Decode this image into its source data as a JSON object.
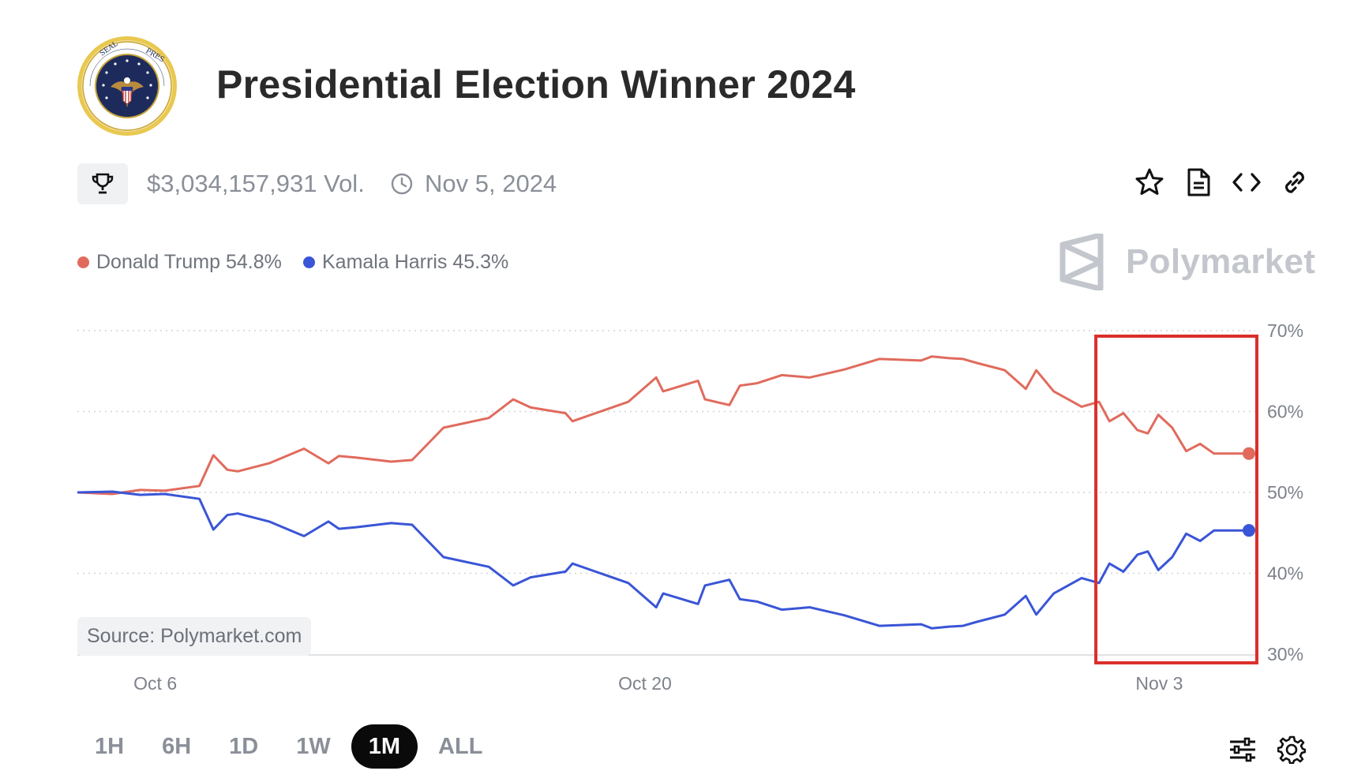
{
  "header": {
    "title": "Presidential Election Winner 2024",
    "volume": "$3,034,157,931 Vol.",
    "end_date": "Nov 5, 2024",
    "seal_icon": "presidential-seal-icon"
  },
  "toolbar": {
    "icons": [
      "star-icon",
      "document-icon",
      "code-icon",
      "link-icon"
    ]
  },
  "legend": [
    {
      "name": "Donald Trump 54.8%",
      "color": "#e06b5d"
    },
    {
      "name": "Kamala Harris 45.3%",
      "color": "#3a55d6"
    }
  ],
  "brand": {
    "name": "Polymarket"
  },
  "source": "Source: Polymarket.com",
  "range_buttons": [
    "1H",
    "6H",
    "1D",
    "1W",
    "1M",
    "ALL"
  ],
  "active_range": "1M",
  "bottom_icons": [
    "sliders-icon",
    "gear-icon"
  ],
  "chart_data": {
    "type": "line",
    "ylim": [
      30,
      70
    ],
    "y_ticks": [
      "70%",
      "60%",
      "50%",
      "40%",
      "30%"
    ],
    "x_ticks": [
      "Oct 6",
      "Oct 20",
      "Nov 3"
    ],
    "grid": true,
    "highlight_box": {
      "from_x": 29.3,
      "to_x": 33.6,
      "color": "#d9302c"
    },
    "series": [
      {
        "name": "Donald Trump",
        "color": "#e06b5d",
        "x": [
          0,
          1,
          1.8,
          2.5,
          3.5,
          3.9,
          4.3,
          4.6,
          5.5,
          6.5,
          7.2,
          7.5,
          8,
          9,
          9.6,
          10.5,
          11.8,
          12.5,
          13,
          14,
          14.2,
          15,
          15.8,
          16.6,
          16.8,
          17.8,
          18,
          18.7,
          19,
          19.5,
          20.2,
          21,
          22,
          23,
          24.2,
          24.5,
          25,
          25.4,
          25.8,
          26.6,
          27.2,
          27.5,
          28,
          28.8,
          29.3,
          29.6,
          30,
          30.4,
          30.7,
          31,
          31.4,
          31.8,
          32.2,
          32.6,
          33,
          33.3,
          33.6
        ],
        "y": [
          50,
          49.8,
          50.3,
          50.2,
          50.8,
          54.6,
          52.8,
          52.6,
          53.6,
          55.4,
          53.6,
          54.5,
          54.3,
          53.8,
          54.0,
          58,
          59.2,
          61.5,
          60.5,
          59.8,
          58.8,
          60,
          61.2,
          64.2,
          62.5,
          63.8,
          61.5,
          60.8,
          63.2,
          63.5,
          64.5,
          64.2,
          65.2,
          66.5,
          66.3,
          66.8,
          66.6,
          66.5,
          66,
          65.1,
          62.8,
          65.1,
          62.5,
          60.6,
          61.2,
          58.8,
          59.8,
          57.7,
          57.3,
          59.6,
          58,
          55.1,
          56,
          54.8,
          54.8,
          54.8,
          54.8
        ]
      },
      {
        "name": "Kamala Harris",
        "color": "#3a55d6",
        "x": [
          0,
          1,
          1.8,
          2.5,
          3.5,
          3.9,
          4.3,
          4.6,
          5.5,
          6.5,
          7.2,
          7.5,
          8,
          9,
          9.6,
          10.5,
          11.8,
          12.5,
          13,
          14,
          14.2,
          15,
          15.8,
          16.6,
          16.8,
          17.8,
          18,
          18.7,
          19,
          19.5,
          20.2,
          21,
          22,
          23,
          24.2,
          24.5,
          25,
          25.4,
          25.8,
          26.6,
          27.2,
          27.5,
          28,
          28.8,
          29.3,
          29.6,
          30,
          30.4,
          30.7,
          31,
          31.4,
          31.8,
          32.2,
          32.6,
          33,
          33.3,
          33.6
        ],
        "y": [
          50,
          50.1,
          49.7,
          49.8,
          49.2,
          45.4,
          47.2,
          47.4,
          46.4,
          44.6,
          46.4,
          45.5,
          45.7,
          46.2,
          46.0,
          42,
          40.8,
          38.5,
          39.5,
          40.2,
          41.2,
          40,
          38.8,
          35.8,
          37.5,
          36.2,
          38.5,
          39.2,
          36.8,
          36.5,
          35.5,
          35.8,
          34.8,
          33.5,
          33.7,
          33.2,
          33.4,
          33.5,
          34,
          34.9,
          37.2,
          34.9,
          37.5,
          39.4,
          38.8,
          41.2,
          40.2,
          42.3,
          42.7,
          40.4,
          42,
          44.9,
          44,
          45.3,
          45.3,
          45.3,
          45.3
        ]
      }
    ]
  }
}
